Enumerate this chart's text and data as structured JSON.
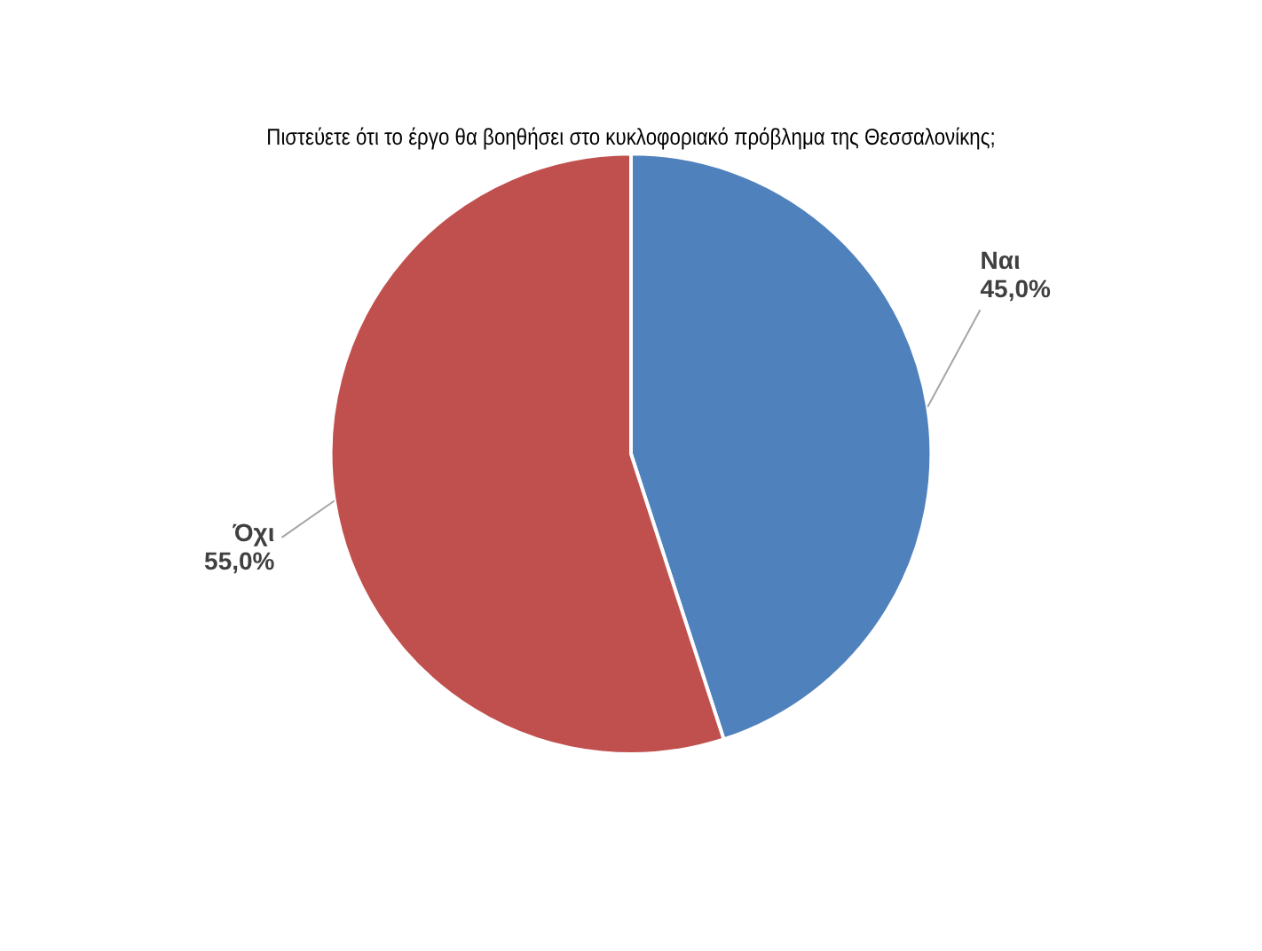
{
  "chart_data": {
    "type": "pie",
    "title": "Πιστεύετε ότι το έργο θα βοηθήσει στο κυκλοφοριακό πρόβλημα της Θεσσαλονίκης;",
    "categories": [
      "Ναι",
      "Όχι"
    ],
    "values": [
      45,
      55
    ],
    "colors": [
      "#4f81bd",
      "#c0504d"
    ],
    "value_labels": [
      "45,0%",
      "55,0%"
    ],
    "legend": false
  }
}
